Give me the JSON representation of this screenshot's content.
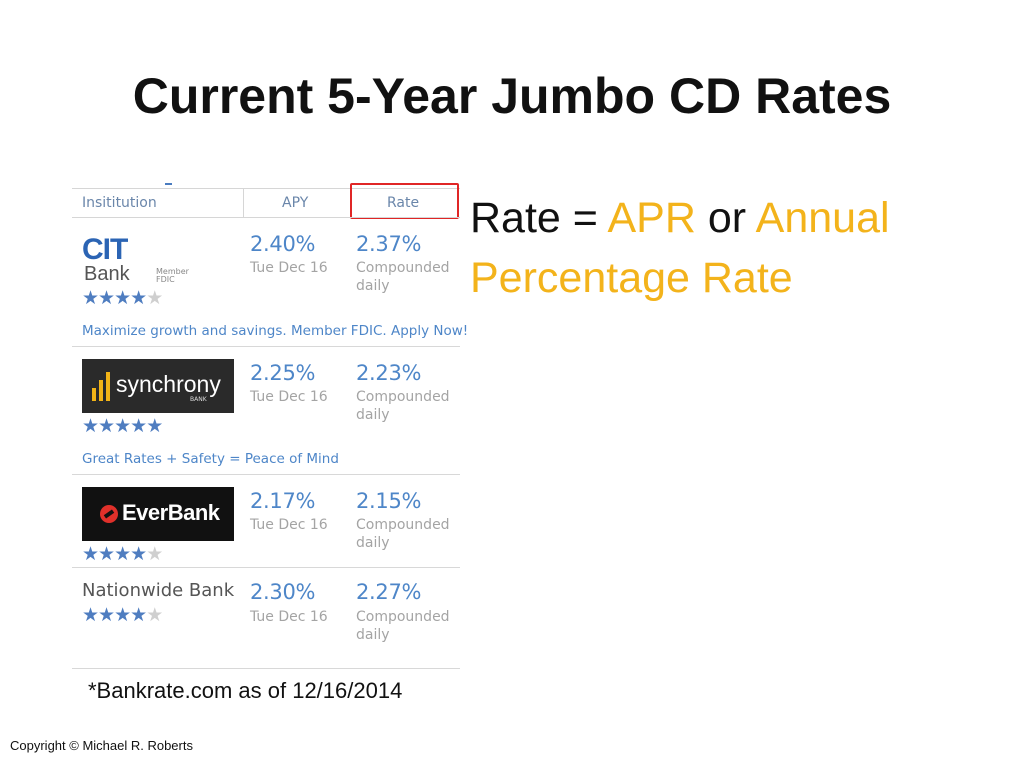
{
  "slide": {
    "title": "Current 5-Year Jumbo CD Rates",
    "definition": {
      "prefix": "Rate = ",
      "term": "APR",
      "middle": " or ",
      "expansion_line1": "Annual",
      "expansion_line2": "Percentage Rate"
    },
    "footnote": "*Bankrate.com as of 12/16/2014",
    "copyright": "Copyright © Michael R. Roberts",
    "highlight_color": "#f3b31b"
  },
  "table": {
    "headers": {
      "institution": "Insititution",
      "apy": "APY",
      "rate": "Rate"
    },
    "rows": [
      {
        "institution": "CIT Bank",
        "logo": {
          "word": "CIT",
          "sub": "Bank",
          "tag": "Member FDIC"
        },
        "apy": "2.40%",
        "date": "Tue Dec 16",
        "rate": "2.37%",
        "compound_line1": "Compounded",
        "compound_line2": "daily",
        "stars": 4,
        "promo": "Maximize growth and savings. Member FDIC. Apply Now!"
      },
      {
        "institution": "Synchrony Bank",
        "logo": {
          "word": "synchrony",
          "sub": "BANK"
        },
        "apy": "2.25%",
        "date": "Tue Dec 16",
        "rate": "2.23%",
        "compound_line1": "Compounded",
        "compound_line2": "daily",
        "stars": 5,
        "promo": "Great Rates + Safety = Peace of Mind"
      },
      {
        "institution": "EverBank",
        "logo": {
          "word": "EverBank"
        },
        "apy": "2.17%",
        "date": "Tue Dec 16",
        "rate": "2.15%",
        "compound_line1": "Compounded",
        "compound_line2": "daily",
        "stars": 4
      },
      {
        "institution": "Nationwide Bank",
        "apy": "2.30%",
        "date": "Tue Dec 16",
        "rate": "2.27%",
        "compound_line1": "Compounded",
        "compound_line2": "daily",
        "stars": 4
      }
    ]
  },
  "colors": {
    "rate_blue": "#4e86c8",
    "star_blue": "#4f7dc0",
    "highlight_box": "#e02626"
  }
}
